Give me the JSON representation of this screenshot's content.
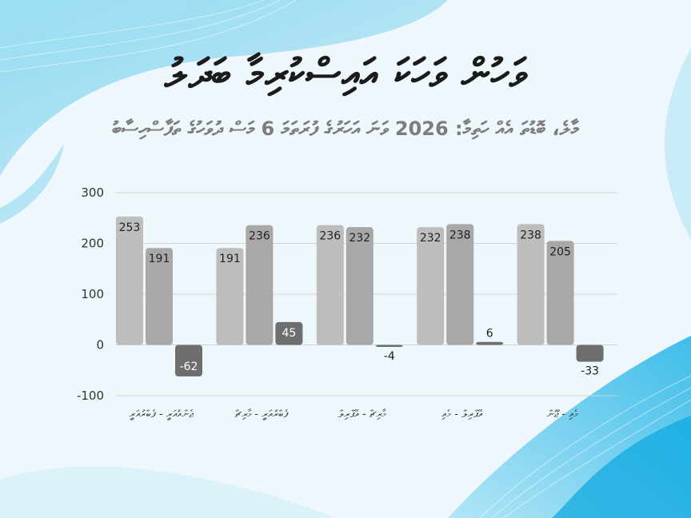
{
  "title": "ވަހުން ވަހަކަ އައިސްކުރިމާ ބަދަލު",
  "subtitle": "މާލެ، ބޮޑުތަ އެއް ހަތިމާ: 2026 ވަނަ އަހަރުގެ ފުރަތަމަ 6 މަސް ދުވަހުގެ ތަފާސްހިސާބު",
  "colors": {
    "series1": "#bdbdbd",
    "series2": "#a8a8a8",
    "series3": "#6e6e6e",
    "grid": "#d0d4d6",
    "axis_text": "#333333"
  },
  "chart_data": {
    "type": "bar",
    "categories": [
      "ޖެންއުއަރީ - ފެބްރުއަރީ",
      "ފެބްރުއަރީ - މާރިޗް",
      "މާރިޗް - އޭޕްރިލް",
      "އޭޕްރިލް - މެއި",
      "މެއި - ޖޫން"
    ],
    "series": [
      {
        "values": [
          253,
          191,
          236,
          232,
          238
        ]
      },
      {
        "values": [
          191,
          236,
          232,
          238,
          205
        ]
      },
      {
        "values": [
          -62,
          45,
          -4,
          6,
          -33
        ]
      }
    ],
    "ylim": [
      -100,
      300
    ],
    "yticks": [
      -100,
      0,
      100,
      200,
      300
    ],
    "grid": true,
    "legend": "none"
  }
}
